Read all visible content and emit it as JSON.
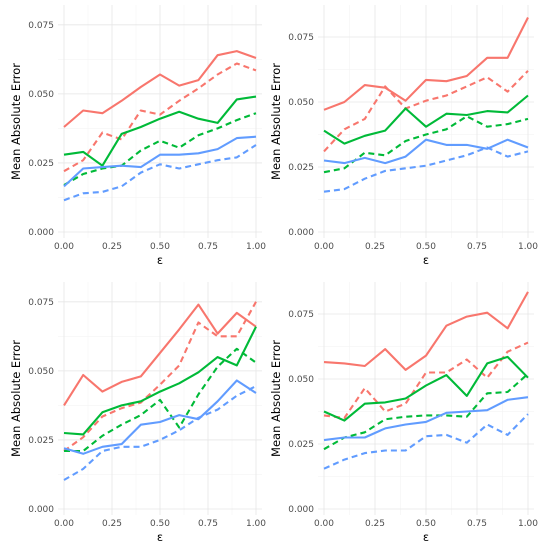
{
  "chart_data": [
    {
      "type": "line",
      "xlabel": "ε",
      "ylabel": "Mean Absolute Error",
      "xlim": [
        0,
        1
      ],
      "ylim": [
        0,
        0.08
      ],
      "x_ticks": [
        "0.00",
        "0.25",
        "0.50",
        "0.75",
        "1.00"
      ],
      "y_ticks": [
        "0.000",
        "0.025",
        "0.050",
        "0.075"
      ],
      "grid": true,
      "legend": "none",
      "x": [
        0,
        0.1,
        0.2,
        0.3,
        0.4,
        0.5,
        0.6,
        0.7,
        0.8,
        0.9,
        1.0
      ],
      "series": [
        {
          "color": "#F8766D",
          "dash": "solid",
          "values": [
            0.038,
            0.044,
            0.043,
            0.0475,
            0.0525,
            0.057,
            0.053,
            0.055,
            0.064,
            0.0655,
            0.063
          ]
        },
        {
          "color": "#F8766D",
          "dash": "dashed",
          "values": [
            0.022,
            0.026,
            0.036,
            0.0335,
            0.044,
            0.0425,
            0.0475,
            0.052,
            0.057,
            0.061,
            0.0585
          ]
        },
        {
          "color": "#00BA38",
          "dash": "solid",
          "values": [
            0.028,
            0.029,
            0.024,
            0.0355,
            0.038,
            0.041,
            0.0435,
            0.041,
            0.0395,
            0.048,
            0.049
          ]
        },
        {
          "color": "#00BA38",
          "dash": "dashed",
          "values": [
            0.017,
            0.021,
            0.023,
            0.024,
            0.0295,
            0.033,
            0.0305,
            0.035,
            0.0375,
            0.0405,
            0.043
          ]
        },
        {
          "color": "#619CFF",
          "dash": "solid",
          "values": [
            0.0165,
            0.023,
            0.0235,
            0.024,
            0.0235,
            0.028,
            0.028,
            0.0285,
            0.03,
            0.034,
            0.0345
          ]
        },
        {
          "color": "#619CFF",
          "dash": "dashed",
          "values": [
            0.0115,
            0.014,
            0.0145,
            0.0165,
            0.0215,
            0.0245,
            0.023,
            0.0245,
            0.026,
            0.027,
            0.0315
          ]
        }
      ]
    },
    {
      "type": "line",
      "xlabel": "ε",
      "ylabel": "Mean Absolute Error",
      "xlim": [
        0,
        1
      ],
      "ylim": [
        0,
        0.085
      ],
      "x_ticks": [
        "0.00",
        "0.25",
        "0.50",
        "0.75",
        "1.00"
      ],
      "y_ticks": [
        "0.000",
        "0.025",
        "0.050",
        "0.075"
      ],
      "grid": true,
      "legend": "none",
      "x": [
        0,
        0.1,
        0.2,
        0.3,
        0.4,
        0.5,
        0.6,
        0.7,
        0.8,
        0.9,
        1.0
      ],
      "series": [
        {
          "color": "#F8766D",
          "dash": "solid",
          "values": [
            0.047,
            0.05,
            0.0565,
            0.0555,
            0.0505,
            0.0585,
            0.058,
            0.06,
            0.067,
            0.067,
            0.0825
          ]
        },
        {
          "color": "#F8766D",
          "dash": "dashed",
          "values": [
            0.031,
            0.0395,
            0.0435,
            0.056,
            0.0475,
            0.0505,
            0.0525,
            0.056,
            0.0595,
            0.054,
            0.062
          ]
        },
        {
          "color": "#00BA38",
          "dash": "solid",
          "values": [
            0.039,
            0.034,
            0.037,
            0.039,
            0.0475,
            0.0405,
            0.0455,
            0.045,
            0.0465,
            0.046,
            0.0525
          ]
        },
        {
          "color": "#00BA38",
          "dash": "dashed",
          "values": [
            0.023,
            0.0245,
            0.0305,
            0.0295,
            0.035,
            0.0375,
            0.0395,
            0.0445,
            0.0405,
            0.0415,
            0.0435
          ]
        },
        {
          "color": "#619CFF",
          "dash": "solid",
          "values": [
            0.0275,
            0.0265,
            0.0285,
            0.0265,
            0.029,
            0.0355,
            0.0335,
            0.0335,
            0.032,
            0.0355,
            0.0325
          ]
        },
        {
          "color": "#619CFF",
          "dash": "dashed",
          "values": [
            0.0155,
            0.0165,
            0.0205,
            0.0235,
            0.0245,
            0.0255,
            0.0275,
            0.0295,
            0.0325,
            0.029,
            0.031
          ]
        }
      ]
    },
    {
      "type": "line",
      "xlabel": "ε",
      "ylabel": "Mean Absolute Error",
      "xlim": [
        0,
        1
      ],
      "ylim": [
        0,
        0.08
      ],
      "x_ticks": [
        "0.00",
        "0.25",
        "0.50",
        "0.75",
        "1.00"
      ],
      "y_ticks": [
        "0.000",
        "0.025",
        "0.050",
        "0.075"
      ],
      "grid": true,
      "legend": "none",
      "x": [
        0,
        0.1,
        0.2,
        0.3,
        0.4,
        0.5,
        0.6,
        0.7,
        0.8,
        0.9,
        1.0
      ],
      "series": [
        {
          "color": "#F8766D",
          "dash": "solid",
          "values": [
            0.0375,
            0.0485,
            0.0425,
            0.046,
            0.048,
            0.0565,
            0.065,
            0.074,
            0.0635,
            0.071,
            0.066
          ]
        },
        {
          "color": "#F8766D",
          "dash": "dashed",
          "values": [
            0.021,
            0.026,
            0.0335,
            0.0365,
            0.0385,
            0.045,
            0.052,
            0.0675,
            0.0625,
            0.0625,
            0.075
          ]
        },
        {
          "color": "#00BA38",
          "dash": "solid",
          "values": [
            0.0275,
            0.027,
            0.035,
            0.0375,
            0.039,
            0.0425,
            0.0455,
            0.0495,
            0.055,
            0.052,
            0.066
          ]
        },
        {
          "color": "#00BA38",
          "dash": "dashed",
          "values": [
            0.021,
            0.021,
            0.0265,
            0.0305,
            0.034,
            0.0395,
            0.0295,
            0.0415,
            0.0515,
            0.058,
            0.053
          ]
        },
        {
          "color": "#619CFF",
          "dash": "solid",
          "values": [
            0.022,
            0.02,
            0.0225,
            0.0235,
            0.0305,
            0.0315,
            0.034,
            0.0325,
            0.039,
            0.0465,
            0.042
          ]
        },
        {
          "color": "#619CFF",
          "dash": "dashed",
          "values": [
            0.0105,
            0.0145,
            0.021,
            0.0225,
            0.0225,
            0.025,
            0.0285,
            0.033,
            0.036,
            0.041,
            0.0445
          ]
        }
      ]
    },
    {
      "type": "line",
      "xlabel": "ε",
      "ylabel": "Mean Absolute Error",
      "xlim": [
        0,
        1
      ],
      "ylim": [
        0,
        0.085
      ],
      "x_ticks": [
        "0.00",
        "0.25",
        "0.50",
        "0.75",
        "1.00"
      ],
      "y_ticks": [
        "0.000",
        "0.025",
        "0.050",
        "0.075"
      ],
      "grid": true,
      "legend": "none",
      "x": [
        0,
        0.1,
        0.2,
        0.3,
        0.4,
        0.5,
        0.6,
        0.7,
        0.8,
        0.9,
        1.0
      ],
      "series": [
        {
          "color": "#F8766D",
          "dash": "solid",
          "values": [
            0.0565,
            0.056,
            0.055,
            0.0615,
            0.0535,
            0.059,
            0.0705,
            0.074,
            0.0755,
            0.0695,
            0.0835
          ]
        },
        {
          "color": "#F8766D",
          "dash": "dashed",
          "values": [
            0.036,
            0.035,
            0.0465,
            0.0375,
            0.0405,
            0.0525,
            0.0525,
            0.0575,
            0.0505,
            0.0605,
            0.064
          ]
        },
        {
          "color": "#00BA38",
          "dash": "solid",
          "values": [
            0.0375,
            0.034,
            0.0405,
            0.041,
            0.0425,
            0.0475,
            0.0515,
            0.0435,
            0.056,
            0.0585,
            0.0505
          ]
        },
        {
          "color": "#00BA38",
          "dash": "dashed",
          "values": [
            0.023,
            0.0275,
            0.0295,
            0.0345,
            0.0355,
            0.036,
            0.036,
            0.0355,
            0.0445,
            0.045,
            0.052
          ]
        },
        {
          "color": "#619CFF",
          "dash": "solid",
          "values": [
            0.0265,
            0.0275,
            0.0275,
            0.031,
            0.0325,
            0.0335,
            0.037,
            0.0375,
            0.038,
            0.042,
            0.043
          ]
        },
        {
          "color": "#619CFF",
          "dash": "dashed",
          "values": [
            0.0155,
            0.019,
            0.0215,
            0.0225,
            0.0225,
            0.028,
            0.0285,
            0.0255,
            0.0325,
            0.0285,
            0.0365
          ]
        }
      ]
    }
  ]
}
